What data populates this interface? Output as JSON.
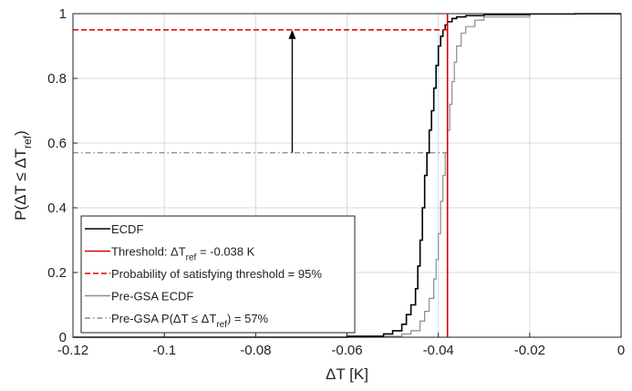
{
  "chart_data": {
    "type": "line",
    "xlabel": "ΔT  [K]",
    "ylabel_main": "P(ΔT ≤ ΔT",
    "ylabel_sub": "ref",
    "ylabel_close": ")",
    "xlim": [
      -0.12,
      0
    ],
    "ylim": [
      0,
      1
    ],
    "xticks": [
      "-0.12",
      "-0.1",
      "-0.08",
      "-0.06",
      "-0.04",
      "-0.02",
      "0"
    ],
    "xtick_values": [
      -0.12,
      -0.1,
      -0.08,
      -0.06,
      -0.04,
      -0.02,
      0
    ],
    "yticks": [
      "0",
      "0.2",
      "0.4",
      "0.6",
      "0.8",
      "1"
    ],
    "ytick_values": [
      0,
      0.2,
      0.4,
      0.6,
      0.8,
      1
    ],
    "grid": true,
    "legend_position": "bottom-left",
    "series": [
      {
        "name": "ECDF",
        "color": "#000000",
        "style": "solid",
        "x": [
          -0.12,
          -0.06,
          -0.052,
          -0.05,
          -0.048,
          -0.047,
          -0.046,
          -0.045,
          -0.0445,
          -0.044,
          -0.0435,
          -0.043,
          -0.0425,
          -0.042,
          -0.0415,
          -0.041,
          -0.0405,
          -0.04,
          -0.0395,
          -0.039,
          -0.0385,
          -0.038,
          -0.037,
          -0.036,
          -0.034,
          -0.03,
          -0.02,
          -0.01,
          0
        ],
        "y": [
          0,
          0.003,
          0.01,
          0.02,
          0.04,
          0.07,
          0.1,
          0.15,
          0.22,
          0.3,
          0.4,
          0.5,
          0.57,
          0.64,
          0.7,
          0.77,
          0.84,
          0.9,
          0.93,
          0.95,
          0.965,
          0.975,
          0.985,
          0.99,
          0.994,
          0.997,
          0.999,
          1,
          1
        ]
      },
      {
        "name": "Threshold: ΔT_ref = -0.038 K",
        "color": "#e00000",
        "style": "solid",
        "x": [
          -0.038,
          -0.038
        ],
        "y": [
          0,
          1
        ]
      },
      {
        "name": "Probability of satisfying threshold = 95%",
        "color": "#e00000",
        "style": "dashed",
        "x": [
          -0.12,
          -0.038
        ],
        "y": [
          0.95,
          0.95
        ]
      },
      {
        "name": "Pre-GSA ECDF",
        "color": "#8c8c8c",
        "style": "solid",
        "x": [
          -0.12,
          -0.055,
          -0.048,
          -0.046,
          -0.044,
          -0.043,
          -0.042,
          -0.041,
          -0.0405,
          -0.04,
          -0.0395,
          -0.039,
          -0.0385,
          -0.038,
          -0.0375,
          -0.037,
          -0.0365,
          -0.036,
          -0.035,
          -0.034,
          -0.032,
          -0.03,
          -0.02,
          0
        ],
        "y": [
          0,
          0.003,
          0.01,
          0.02,
          0.05,
          0.08,
          0.12,
          0.18,
          0.24,
          0.32,
          0.42,
          0.5,
          0.57,
          0.64,
          0.72,
          0.79,
          0.85,
          0.9,
          0.94,
          0.96,
          0.98,
          0.99,
          0.999,
          1
        ]
      },
      {
        "name": "Pre-GSA  P(ΔT ≤ ΔT_ref) = 57%",
        "color": "#8c8c8c",
        "style": "dashdot",
        "x": [
          -0.12,
          -0.038
        ],
        "y": [
          0.57,
          0.57
        ]
      }
    ],
    "annotation_arrow": {
      "x": -0.072,
      "y_from": 0.57,
      "y_to": 0.95,
      "color": "#000000"
    },
    "legend": [
      {
        "label": "ECDF",
        "color": "#000000",
        "style": "solid"
      },
      {
        "label_pre": "Threshold: ΔT",
        "label_sub": "ref",
        "label_post": " = -0.038 K",
        "color": "#e00000",
        "style": "solid"
      },
      {
        "label": "Probability of satisfying threshold = 95%",
        "color": "#e00000",
        "style": "dashed"
      },
      {
        "label": "Pre-GSA ECDF",
        "color": "#8c8c8c",
        "style": "solid"
      },
      {
        "label_pre": "Pre-GSA  P(ΔT ≤ ΔT",
        "label_sub": "ref",
        "label_post": ") = 57%",
        "color": "#8c8c8c",
        "style": "dashdot"
      }
    ]
  }
}
